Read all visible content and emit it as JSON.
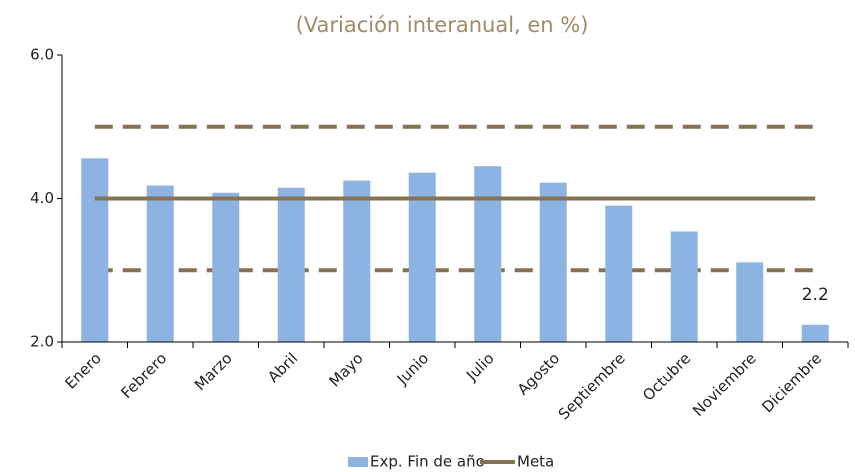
{
  "chart_data": {
    "type": "bar",
    "title": "(Variación interanual, en %)",
    "categories": [
      "Enero",
      "Febrero",
      "Marzo",
      "Abril",
      "Mayo",
      "Junio",
      "Julio",
      "Agosto",
      "Septiembre",
      "Octubre",
      "Noviembre",
      "Diciembre"
    ],
    "series": [
      {
        "name": "Exp. Fin de año",
        "type": "bar",
        "color": "#8db3e2",
        "values": [
          4.56,
          4.18,
          4.08,
          4.15,
          4.25,
          4.36,
          4.45,
          4.22,
          3.9,
          3.54,
          3.11,
          2.24
        ],
        "value_labels": [
          null,
          null,
          null,
          null,
          null,
          null,
          null,
          null,
          null,
          null,
          null,
          "2.2"
        ]
      },
      {
        "name": "Meta",
        "type": "line",
        "color": "#857153",
        "values": [
          4,
          4,
          4,
          4,
          4,
          4,
          4,
          4,
          4,
          4,
          4,
          4
        ]
      }
    ],
    "reference_lines": [
      {
        "value": 5,
        "color": "#857153",
        "style": "dashed"
      },
      {
        "value": 3,
        "color": "#857153",
        "style": "dashed"
      }
    ],
    "ylim": [
      2,
      6
    ],
    "yticks": [
      {
        "value": 2,
        "label": "2.0"
      },
      {
        "value": 4,
        "label": "4.0"
      },
      {
        "value": 6,
        "label": "6.0"
      }
    ],
    "grid": false,
    "legend": "bottom"
  }
}
